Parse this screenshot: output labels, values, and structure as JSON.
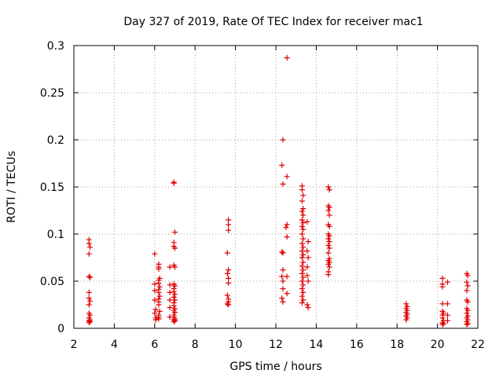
{
  "chart_data": {
    "type": "scatter",
    "title": "Day 327 of 2019, Rate Of TEC Index for receiver mac1",
    "xlabel": "GPS time / hours",
    "ylabel": "ROTI / TECUs",
    "xlim": [
      2,
      22
    ],
    "ylim": [
      0,
      0.3
    ],
    "xticks": [
      2,
      4,
      6,
      8,
      10,
      12,
      14,
      16,
      18,
      20,
      22
    ],
    "yticks": [
      0,
      0.05,
      0.1,
      0.15,
      0.2,
      0.25,
      0.3
    ],
    "ytick_labels": [
      "0",
      "0.05",
      "0.1",
      "0.15",
      "0.2",
      "0.25",
      "0.3"
    ],
    "grid": true,
    "marker": "+",
    "color": "#e00000",
    "series": [
      {
        "name": "ROTI",
        "points": [
          [
            2.75,
            0.094
          ],
          [
            2.75,
            0.09
          ],
          [
            2.8,
            0.086
          ],
          [
            2.75,
            0.079
          ],
          [
            2.75,
            0.055
          ],
          [
            2.8,
            0.054
          ],
          [
            2.75,
            0.038
          ],
          [
            2.75,
            0.032
          ],
          [
            2.8,
            0.029
          ],
          [
            2.75,
            0.025
          ],
          [
            2.75,
            0.016
          ],
          [
            2.8,
            0.014
          ],
          [
            2.75,
            0.011
          ],
          [
            2.8,
            0.009
          ],
          [
            2.75,
            0.008
          ],
          [
            2.8,
            0.007
          ],
          [
            2.75,
            0.006
          ],
          [
            6.0,
            0.079
          ],
          [
            6.0,
            0.047
          ],
          [
            6.0,
            0.04
          ],
          [
            6.0,
            0.03
          ],
          [
            6.05,
            0.02
          ],
          [
            6.0,
            0.016
          ],
          [
            6.05,
            0.011
          ],
          [
            6.05,
            0.009
          ],
          [
            6.2,
            0.068
          ],
          [
            6.2,
            0.065
          ],
          [
            6.2,
            0.063
          ],
          [
            6.25,
            0.053
          ],
          [
            6.2,
            0.051
          ],
          [
            6.2,
            0.048
          ],
          [
            6.25,
            0.044
          ],
          [
            6.2,
            0.041
          ],
          [
            6.2,
            0.038
          ],
          [
            6.25,
            0.034
          ],
          [
            6.2,
            0.031
          ],
          [
            6.2,
            0.028
          ],
          [
            6.2,
            0.025
          ],
          [
            6.25,
            0.018
          ],
          [
            6.2,
            0.014
          ],
          [
            6.2,
            0.012
          ],
          [
            6.2,
            0.01
          ],
          [
            6.75,
            0.065
          ],
          [
            6.75,
            0.046
          ],
          [
            6.75,
            0.038
          ],
          [
            6.75,
            0.03
          ],
          [
            6.75,
            0.022
          ],
          [
            6.75,
            0.012
          ],
          [
            6.95,
            0.155
          ],
          [
            6.95,
            0.154
          ],
          [
            7.0,
            0.102
          ],
          [
            6.95,
            0.091
          ],
          [
            6.95,
            0.087
          ],
          [
            7.0,
            0.085
          ],
          [
            6.95,
            0.067
          ],
          [
            7.0,
            0.065
          ],
          [
            6.95,
            0.047
          ],
          [
            7.0,
            0.045
          ],
          [
            6.95,
            0.042
          ],
          [
            6.95,
            0.039
          ],
          [
            7.0,
            0.036
          ],
          [
            6.95,
            0.033
          ],
          [
            7.0,
            0.03
          ],
          [
            6.95,
            0.027
          ],
          [
            6.95,
            0.024
          ],
          [
            7.0,
            0.021
          ],
          [
            6.95,
            0.019
          ],
          [
            7.0,
            0.017
          ],
          [
            6.95,
            0.014
          ],
          [
            6.95,
            0.012
          ],
          [
            7.0,
            0.01
          ],
          [
            6.95,
            0.009
          ],
          [
            7.0,
            0.008
          ],
          [
            6.95,
            0.007
          ],
          [
            9.65,
            0.115
          ],
          [
            9.65,
            0.11
          ],
          [
            9.65,
            0.104
          ],
          [
            9.6,
            0.08
          ],
          [
            9.65,
            0.062
          ],
          [
            9.6,
            0.058
          ],
          [
            9.65,
            0.053
          ],
          [
            9.65,
            0.048
          ],
          [
            9.6,
            0.035
          ],
          [
            9.65,
            0.031
          ],
          [
            9.65,
            0.028
          ],
          [
            9.6,
            0.026
          ],
          [
            9.65,
            0.025
          ],
          [
            12.35,
            0.2
          ],
          [
            12.3,
            0.173
          ],
          [
            12.35,
            0.153
          ],
          [
            12.3,
            0.081
          ],
          [
            12.35,
            0.08
          ],
          [
            12.35,
            0.062
          ],
          [
            12.3,
            0.055
          ],
          [
            12.35,
            0.05
          ],
          [
            12.35,
            0.042
          ],
          [
            12.3,
            0.032
          ],
          [
            12.35,
            0.028
          ],
          [
            12.55,
            0.287
          ],
          [
            12.55,
            0.161
          ],
          [
            12.55,
            0.11
          ],
          [
            12.5,
            0.107
          ],
          [
            12.55,
            0.097
          ],
          [
            12.55,
            0.055
          ],
          [
            12.55,
            0.037
          ],
          [
            13.3,
            0.151
          ],
          [
            13.3,
            0.147
          ],
          [
            13.35,
            0.141
          ],
          [
            13.3,
            0.135
          ],
          [
            13.35,
            0.127
          ],
          [
            13.3,
            0.124
          ],
          [
            13.35,
            0.12
          ],
          [
            13.3,
            0.115
          ],
          [
            13.35,
            0.112
          ],
          [
            13.3,
            0.108
          ],
          [
            13.35,
            0.105
          ],
          [
            13.3,
            0.1
          ],
          [
            13.35,
            0.095
          ],
          [
            13.3,
            0.09
          ],
          [
            13.35,
            0.086
          ],
          [
            13.3,
            0.082
          ],
          [
            13.35,
            0.078
          ],
          [
            13.3,
            0.075
          ],
          [
            13.35,
            0.07
          ],
          [
            13.3,
            0.066
          ],
          [
            13.35,
            0.062
          ],
          [
            13.3,
            0.058
          ],
          [
            13.35,
            0.054
          ],
          [
            13.3,
            0.05
          ],
          [
            13.35,
            0.046
          ],
          [
            13.3,
            0.042
          ],
          [
            13.35,
            0.038
          ],
          [
            13.3,
            0.034
          ],
          [
            13.35,
            0.03
          ],
          [
            13.3,
            0.027
          ],
          [
            13.55,
            0.113
          ],
          [
            13.6,
            0.092
          ],
          [
            13.55,
            0.082
          ],
          [
            13.6,
            0.075
          ],
          [
            13.55,
            0.065
          ],
          [
            13.55,
            0.056
          ],
          [
            13.6,
            0.05
          ],
          [
            13.55,
            0.025
          ],
          [
            13.6,
            0.022
          ],
          [
            14.6,
            0.15
          ],
          [
            14.65,
            0.147
          ],
          [
            14.6,
            0.13
          ],
          [
            14.65,
            0.128
          ],
          [
            14.6,
            0.125
          ],
          [
            14.65,
            0.12
          ],
          [
            14.6,
            0.11
          ],
          [
            14.65,
            0.108
          ],
          [
            14.6,
            0.1
          ],
          [
            14.65,
            0.098
          ],
          [
            14.6,
            0.095
          ],
          [
            14.65,
            0.092
          ],
          [
            14.6,
            0.088
          ],
          [
            14.65,
            0.085
          ],
          [
            14.6,
            0.08
          ],
          [
            14.65,
            0.074
          ],
          [
            14.6,
            0.072
          ],
          [
            14.65,
            0.07
          ],
          [
            14.6,
            0.068
          ],
          [
            14.65,
            0.065
          ],
          [
            14.6,
            0.06
          ],
          [
            14.6,
            0.057
          ],
          [
            18.45,
            0.026
          ],
          [
            18.5,
            0.023
          ],
          [
            18.45,
            0.021
          ],
          [
            18.5,
            0.019
          ],
          [
            18.45,
            0.017
          ],
          [
            18.5,
            0.015
          ],
          [
            18.45,
            0.013
          ],
          [
            18.5,
            0.011
          ],
          [
            18.45,
            0.009
          ],
          [
            20.25,
            0.053
          ],
          [
            20.25,
            0.047
          ],
          [
            20.25,
            0.044
          ],
          [
            20.5,
            0.049
          ],
          [
            20.25,
            0.026
          ],
          [
            20.5,
            0.026
          ],
          [
            20.25,
            0.018
          ],
          [
            20.3,
            0.016
          ],
          [
            20.25,
            0.014
          ],
          [
            20.5,
            0.014
          ],
          [
            20.25,
            0.011
          ],
          [
            20.3,
            0.008
          ],
          [
            20.5,
            0.008
          ],
          [
            20.25,
            0.006
          ],
          [
            20.3,
            0.005
          ],
          [
            20.25,
            0.004
          ],
          [
            21.45,
            0.058
          ],
          [
            21.5,
            0.056
          ],
          [
            21.45,
            0.049
          ],
          [
            21.5,
            0.045
          ],
          [
            21.45,
            0.04
          ],
          [
            21.45,
            0.03
          ],
          [
            21.5,
            0.028
          ],
          [
            21.45,
            0.021
          ],
          [
            21.5,
            0.019
          ],
          [
            21.45,
            0.016
          ],
          [
            21.5,
            0.013
          ],
          [
            21.45,
            0.011
          ],
          [
            21.5,
            0.009
          ],
          [
            21.45,
            0.007
          ],
          [
            21.5,
            0.005
          ],
          [
            21.45,
            0.004
          ]
        ]
      }
    ]
  }
}
